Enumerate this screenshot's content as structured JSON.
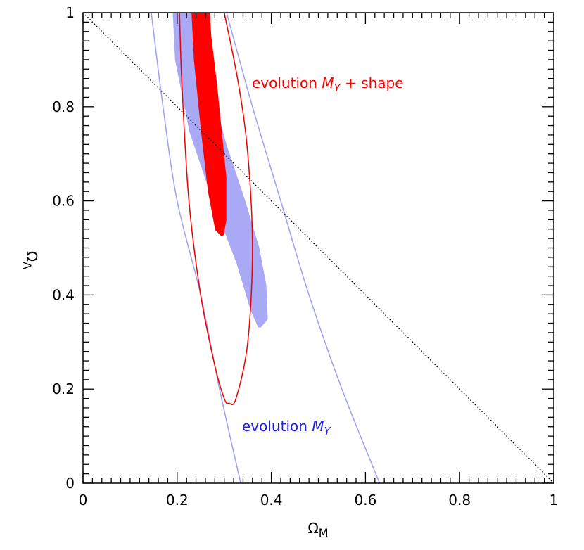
{
  "chart_data": {
    "type": "contour",
    "xlabel": {
      "main": "Ω",
      "sub": "M"
    },
    "ylabel": {
      "main": "Ω",
      "sub": "Λ"
    },
    "xlim": [
      0,
      1
    ],
    "ylim": [
      0,
      1
    ],
    "xticks": [
      0,
      0.2,
      0.4,
      0.6,
      0.8,
      1
    ],
    "yticks": [
      0,
      0.2,
      0.4,
      0.6,
      0.8,
      1
    ],
    "xminorticks": [
      0.02,
      0.04,
      0.06,
      0.08,
      0.1,
      0.12,
      0.14,
      0.16,
      0.18,
      0.22,
      0.24,
      0.26,
      0.28,
      0.3,
      0.32,
      0.34,
      0.36,
      0.38,
      0.42,
      0.44,
      0.46,
      0.48,
      0.5,
      0.52,
      0.54,
      0.56,
      0.58,
      0.62,
      0.64,
      0.66,
      0.68,
      0.7,
      0.72,
      0.74,
      0.76,
      0.78,
      0.82,
      0.84,
      0.86,
      0.88,
      0.9,
      0.92,
      0.94,
      0.96,
      0.98
    ],
    "yminorticks": [
      0.02,
      0.04,
      0.06,
      0.08,
      0.1,
      0.12,
      0.14,
      0.16,
      0.18,
      0.22,
      0.24,
      0.26,
      0.28,
      0.3,
      0.32,
      0.34,
      0.36,
      0.38,
      0.42,
      0.44,
      0.46,
      0.48,
      0.5,
      0.52,
      0.54,
      0.56,
      0.58,
      0.62,
      0.64,
      0.66,
      0.68,
      0.7,
      0.72,
      0.74,
      0.76,
      0.78,
      0.82,
      0.84,
      0.86,
      0.88,
      0.9,
      0.92,
      0.94,
      0.96,
      0.98
    ],
    "series": [
      {
        "style": "fill",
        "color": "#a9a9f6",
        "x": [
          0.195,
          0.2,
          0.23,
          0.28,
          0.33,
          0.36,
          0.375,
          0.388,
          0.385,
          0.37,
          0.34,
          0.3,
          0.265,
          0.245,
          0.24
        ],
        "y": [
          1,
          0.9,
          0.75,
          0.6,
          0.47,
          0.37,
          0.335,
          0.35,
          0.42,
          0.5,
          0.6,
          0.72,
          0.85,
          0.95,
          1
        ]
      },
      {
        "style": "line",
        "color": "#a0a0f0",
        "x": [
          0.145,
          0.17,
          0.2,
          0.25,
          0.29,
          0.335
        ],
        "y": [
          1,
          0.8,
          0.6,
          0.4,
          0.2,
          0
        ]
      },
      {
        "style": "line",
        "color": "#a0a0f0",
        "x": [
          0.305,
          0.36,
          0.42,
          0.48,
          0.55,
          0.63
        ],
        "y": [
          1,
          0.8,
          0.6,
          0.4,
          0.2,
          0
        ]
      },
      {
        "style": "fill",
        "color": "#ff0000",
        "x": [
          0.235,
          0.24,
          0.255,
          0.27,
          0.285,
          0.295,
          0.3,
          0.3,
          0.29,
          0.28,
          0.268,
          0.265
        ],
        "y": [
          1,
          0.9,
          0.75,
          0.62,
          0.54,
          0.53,
          0.56,
          0.65,
          0.75,
          0.85,
          0.95,
          1
        ]
      },
      {
        "style": "line",
        "color": "#ee0000",
        "x": [
          0.205,
          0.21,
          0.225,
          0.25,
          0.28,
          0.3,
          0.31,
          0.325,
          0.35,
          0.36,
          0.35,
          0.33,
          0.3
        ],
        "y": [
          1,
          0.85,
          0.6,
          0.4,
          0.25,
          0.18,
          0.17,
          0.18,
          0.3,
          0.5,
          0.7,
          0.85,
          1
        ]
      },
      {
        "style": "dotted",
        "color": "#000000",
        "x": [
          0,
          1
        ],
        "y": [
          1,
          0
        ]
      }
    ],
    "annotations": [
      {
        "text": "evolution ",
        "var": "M",
        "sub": "Y",
        "rest": " + shape",
        "color": "#ff0000"
      },
      {
        "text": "evolution ",
        "var": "M",
        "sub": "Y",
        "color": "#2020ee"
      }
    ]
  }
}
